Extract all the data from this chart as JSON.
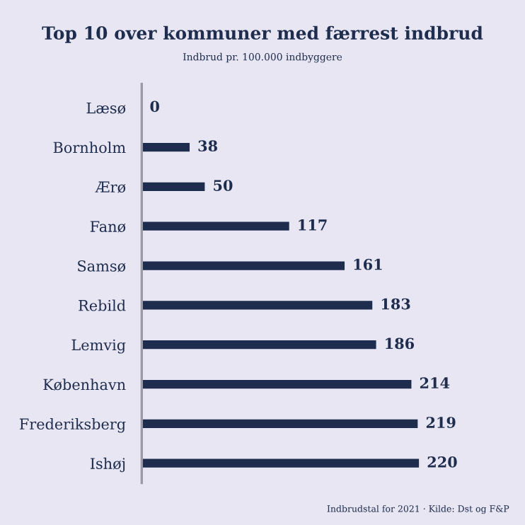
{
  "chart_data": {
    "type": "bar",
    "orientation": "horizontal",
    "title": "Top 10 over kommuner med færrest indbrud",
    "subtitle": "Indbrud pr. 100.000 indbyggere",
    "categories": [
      "Læsø",
      "Bornholm",
      "Ærø",
      "Fanø",
      "Samsø",
      "Rebild",
      "Lemvig",
      "København",
      "Frederiksberg",
      "Ishøj"
    ],
    "values": [
      0,
      38,
      50,
      117,
      161,
      183,
      186,
      214,
      219,
      220
    ],
    "color": "#1e2d4e",
    "data_labels": true,
    "annotations": [
      "Indbrudstal for 2021 · Kilde: Dst og F&P"
    ]
  }
}
